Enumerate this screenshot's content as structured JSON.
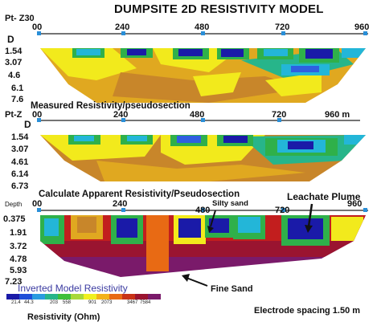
{
  "title": "DUMPSITE 2D RESISTIVITY MODEL",
  "panels": [
    {
      "label": "Pt- Z30",
      "depth_header": "D",
      "ticks": [
        "00",
        "240",
        "480",
        "720",
        "960"
      ],
      "depths": [
        "1.54",
        "3.07",
        "4.6",
        "6.1",
        "7.6"
      ],
      "caption": "Measured Resistivity/pseudosection"
    },
    {
      "label": "Pt-Z",
      "depth_header": "D",
      "ticks": [
        "00",
        "240",
        "480",
        "720",
        "960 m"
      ],
      "depths": [
        "1.54",
        "3.07",
        "4.61",
        "6.14",
        "6.73"
      ],
      "caption": "Calculate Apparent Resistivity/Pseudosection"
    },
    {
      "label": "Depth",
      "depth_header": "0.375",
      "ticks": [
        "00",
        "240",
        "480",
        "720",
        "960"
      ],
      "depths": [
        "1.91",
        "3.72",
        "4.78",
        "5.93",
        "7.23"
      ],
      "caption": "Inverted Model Resistivity"
    }
  ],
  "annotations": {
    "silty_sand": "Silty sand",
    "leachate_plume": "Leachate Plume",
    "fine_sand": "Fine Sand",
    "electrode_spacing": "Electrode spacing 1.50 m",
    "resistivity_unit": "Resistivity (Ohm)"
  },
  "legend": {
    "values": [
      "21.4",
      "44.3",
      "203",
      "558",
      "901",
      "2073",
      "3467",
      "7584"
    ],
    "colors": [
      "#1a1aa8",
      "#1f4fd8",
      "#2a9be0",
      "#27b58a",
      "#3fbf3a",
      "#a8d83a",
      "#f0f020",
      "#f3b21a",
      "#e86a14",
      "#c83216",
      "#9a1430",
      "#7a1a6a"
    ]
  },
  "colors": {
    "dark_blue": "#1a1aa8",
    "blue": "#2f5fe0",
    "cyan": "#23b6d8",
    "green": "#2fb04a",
    "yellow": "#f2ea1c",
    "orange": "#e0a820",
    "tan": "#c8862a",
    "red": "#c21e1e",
    "magenta": "#8a1a6e",
    "purple": "#6a1a7a"
  }
}
